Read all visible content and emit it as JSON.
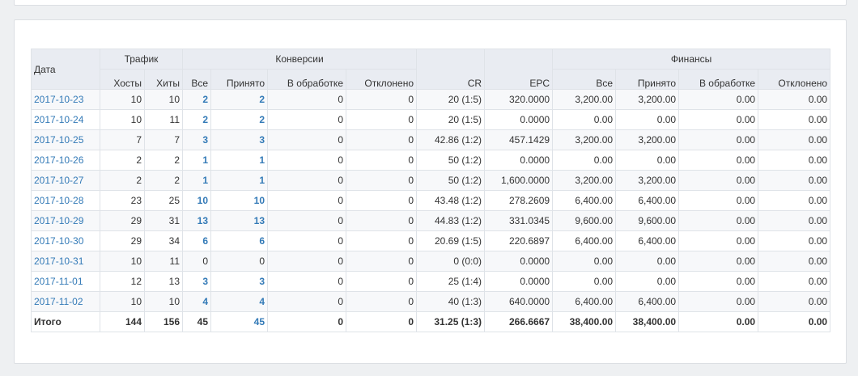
{
  "table": {
    "headers": {
      "date": "Дата",
      "traffic": "Трафик",
      "conversions": "Конверсии",
      "cr": "CR",
      "epc": "EPC",
      "finances": "Финансы",
      "hosts": "Хосты",
      "hits": "Хиты",
      "conv_all": "Все",
      "conv_accepted": "Принято",
      "conv_processing": "В обработке",
      "conv_rejected": "Отклонено",
      "fin_all": "Все",
      "fin_accepted": "Принято",
      "fin_processing": "В обработке",
      "fin_rejected": "Отклонено"
    },
    "rows": [
      {
        "date": "2017-10-23",
        "hosts": "10",
        "hits": "10",
        "conv_all": "2",
        "conv_accepted": "2",
        "conv_processing": "0",
        "conv_rejected": "0",
        "cr": "20 (1:5)",
        "epc": "320.0000",
        "fin_all": "3,200.00",
        "fin_accepted": "3,200.00",
        "fin_processing": "0.00",
        "fin_rejected": "0.00"
      },
      {
        "date": "2017-10-24",
        "hosts": "10",
        "hits": "11",
        "conv_all": "2",
        "conv_accepted": "2",
        "conv_processing": "0",
        "conv_rejected": "0",
        "cr": "20 (1:5)",
        "epc": "0.0000",
        "fin_all": "0.00",
        "fin_accepted": "0.00",
        "fin_processing": "0.00",
        "fin_rejected": "0.00"
      },
      {
        "date": "2017-10-25",
        "hosts": "7",
        "hits": "7",
        "conv_all": "3",
        "conv_accepted": "3",
        "conv_processing": "0",
        "conv_rejected": "0",
        "cr": "42.86 (1:2)",
        "epc": "457.1429",
        "fin_all": "3,200.00",
        "fin_accepted": "3,200.00",
        "fin_processing": "0.00",
        "fin_rejected": "0.00"
      },
      {
        "date": "2017-10-26",
        "hosts": "2",
        "hits": "2",
        "conv_all": "1",
        "conv_accepted": "1",
        "conv_processing": "0",
        "conv_rejected": "0",
        "cr": "50 (1:2)",
        "epc": "0.0000",
        "fin_all": "0.00",
        "fin_accepted": "0.00",
        "fin_processing": "0.00",
        "fin_rejected": "0.00"
      },
      {
        "date": "2017-10-27",
        "hosts": "2",
        "hits": "2",
        "conv_all": "1",
        "conv_accepted": "1",
        "conv_processing": "0",
        "conv_rejected": "0",
        "cr": "50 (1:2)",
        "epc": "1,600.0000",
        "fin_all": "3,200.00",
        "fin_accepted": "3,200.00",
        "fin_processing": "0.00",
        "fin_rejected": "0.00"
      },
      {
        "date": "2017-10-28",
        "hosts": "23",
        "hits": "25",
        "conv_all": "10",
        "conv_accepted": "10",
        "conv_processing": "0",
        "conv_rejected": "0",
        "cr": "43.48 (1:2)",
        "epc": "278.2609",
        "fin_all": "6,400.00",
        "fin_accepted": "6,400.00",
        "fin_processing": "0.00",
        "fin_rejected": "0.00"
      },
      {
        "date": "2017-10-29",
        "hosts": "29",
        "hits": "31",
        "conv_all": "13",
        "conv_accepted": "13",
        "conv_processing": "0",
        "conv_rejected": "0",
        "cr": "44.83 (1:2)",
        "epc": "331.0345",
        "fin_all": "9,600.00",
        "fin_accepted": "9,600.00",
        "fin_processing": "0.00",
        "fin_rejected": "0.00"
      },
      {
        "date": "2017-10-30",
        "hosts": "29",
        "hits": "34",
        "conv_all": "6",
        "conv_accepted": "6",
        "conv_processing": "0",
        "conv_rejected": "0",
        "cr": "20.69 (1:5)",
        "epc": "220.6897",
        "fin_all": "6,400.00",
        "fin_accepted": "6,400.00",
        "fin_processing": "0.00",
        "fin_rejected": "0.00"
      },
      {
        "date": "2017-10-31",
        "hosts": "10",
        "hits": "11",
        "conv_all": "0",
        "conv_accepted": "0",
        "conv_processing": "0",
        "conv_rejected": "0",
        "cr": "0 (0:0)",
        "epc": "0.0000",
        "fin_all": "0.00",
        "fin_accepted": "0.00",
        "fin_processing": "0.00",
        "fin_rejected": "0.00"
      },
      {
        "date": "2017-11-01",
        "hosts": "12",
        "hits": "13",
        "conv_all": "3",
        "conv_accepted": "3",
        "conv_processing": "0",
        "conv_rejected": "0",
        "cr": "25 (1:4)",
        "epc": "0.0000",
        "fin_all": "0.00",
        "fin_accepted": "0.00",
        "fin_processing": "0.00",
        "fin_rejected": "0.00"
      },
      {
        "date": "2017-11-02",
        "hosts": "10",
        "hits": "10",
        "conv_all": "4",
        "conv_accepted": "4",
        "conv_processing": "0",
        "conv_rejected": "0",
        "cr": "40 (1:3)",
        "epc": "640.0000",
        "fin_all": "6,400.00",
        "fin_accepted": "6,400.00",
        "fin_processing": "0.00",
        "fin_rejected": "0.00"
      }
    ],
    "total": {
      "label": "Итого",
      "hosts": "144",
      "hits": "156",
      "conv_all": "45",
      "conv_accepted": "45",
      "conv_processing": "0",
      "conv_rejected": "0",
      "cr": "31.25 (1:3)",
      "epc": "266.6667",
      "fin_all": "38,400.00",
      "fin_accepted": "38,400.00",
      "fin_processing": "0.00",
      "fin_rejected": "0.00"
    }
  },
  "colors": {
    "link": "#337ab7",
    "header_bg": "#e9ecf2",
    "border": "#dfe3e8",
    "page_bg": "#eef0f2"
  }
}
